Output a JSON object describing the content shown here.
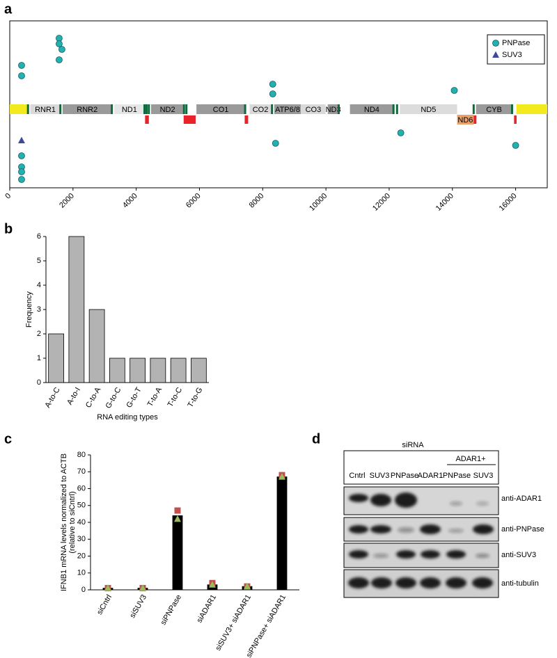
{
  "panel_labels": [
    "a",
    "b",
    "c",
    "d"
  ],
  "chart_data": [
    {
      "type": "scatter",
      "xlim": [
        0,
        17000
      ],
      "xticks": [
        0,
        2000,
        4000,
        6000,
        8000,
        10000,
        12000,
        14000,
        16000
      ],
      "ylim": [
        -11.3,
        12.7
      ],
      "legend": "upper right",
      "series": [
        {
          "name": "PNPase",
          "color": "#22b0b0",
          "marker": "circle",
          "x": [
            374,
            374,
            1562,
            1562,
            1650,
            1562,
            8319,
            8319,
            8407,
            12368,
            14060,
            16000,
            374,
            374,
            374,
            374
          ],
          "values": [
            6.3,
            4.8,
            10.2,
            9.4,
            8.6,
            7.1,
            3.6,
            2.2,
            -4.9,
            -3.4,
            2.7,
            -5.2,
            -6.7,
            -8.3,
            -9.0,
            -10.1
          ]
        },
        {
          "name": "SUV3",
          "color": "#3c4a9c",
          "marker": "triangle",
          "x": [
            374
          ],
          "values": [
            -4.5
          ]
        }
      ],
      "genome_map": {
        "noncoding_color": "#f2ea1c",
        "noncoding": [
          [
            0,
            577
          ],
          [
            16024,
            17000
          ]
        ],
        "genes": [
          {
            "name": "RNR1",
            "start": 648,
            "end": 1601,
            "color": "#d9d9d9"
          },
          {
            "name": "RNR2",
            "start": 1671,
            "end": 3229,
            "color": "#9a9a9a"
          },
          {
            "name": "ND1",
            "start": 3307,
            "end": 4262,
            "color": "#e6e6e6"
          },
          {
            "name": "ND2",
            "start": 4470,
            "end": 5511,
            "color": "#9a9a9a"
          },
          {
            "name": "CO1",
            "start": 5904,
            "end": 7445,
            "color": "#9a9a9a"
          },
          {
            "name": "CO2",
            "start": 7586,
            "end": 8269,
            "color": "#d9d9d9"
          },
          {
            "name": "ATP6/8",
            "start": 8366,
            "end": 9207,
            "color": "#9a9a9a"
          },
          {
            "name": "CO3",
            "start": 9207,
            "end": 9990,
            "color": "#d9d9d9"
          },
          {
            "name": "ND3",
            "start": 10059,
            "end": 10404,
            "color": "#9a9a9a"
          },
          {
            "name": "ND4",
            "start": 10760,
            "end": 12137,
            "color": "#9a9a9a"
          },
          {
            "name": "ND5",
            "start": 12337,
            "end": 14148,
            "color": "#dcdcdc"
          },
          {
            "name": "ND6",
            "start": 14149,
            "end": 14673,
            "color": "#e9a06a",
            "strand": "minus"
          },
          {
            "name": "CYB",
            "start": 14747,
            "end": 15887,
            "color": "#9a9a9a"
          }
        ],
        "trna_color": "#0b6b3a",
        "trna": [
          577,
          1601,
          3229,
          4262,
          4329,
          4400,
          5511,
          5587,
          7445,
          8295,
          10404,
          12137,
          12250,
          14673,
          15887
        ],
        "marks_color": "#e8242a",
        "marks": [
          [
            4280,
            4400
          ],
          [
            5500,
            5880
          ],
          [
            7430,
            7540
          ],
          [
            14673,
            14760
          ],
          [
            15950,
            16030
          ]
        ]
      }
    },
    {
      "type": "bar",
      "categories": [
        "A-to-C",
        "A-to-I",
        "C-to-A",
        "G-to-C",
        "G-to-T",
        "T-to-A",
        "T-to-C",
        "T-to-G"
      ],
      "values": [
        2,
        6,
        3,
        1,
        1,
        1,
        1,
        1
      ],
      "color": "#b3b3b3",
      "ylim": [
        0,
        6
      ],
      "yticks": [
        0,
        1,
        2,
        3,
        4,
        5,
        6
      ],
      "y_label": "Frequency",
      "x_label": "RNA editing types"
    },
    {
      "type": "bar",
      "categories": [
        "siCntrl",
        "siSUV3",
        "siPNPase",
        "siADAR1",
        "siSUV3+ siADAR1",
        "siPNPase+ siADAR1"
      ],
      "series": [
        {
          "color": "#000000",
          "values": [
            1,
            1,
            44,
            3,
            2,
            67
          ]
        },
        {
          "color": "#c0504d",
          "marker": "square",
          "values": [
            1,
            1,
            47,
            4,
            2,
            68
          ]
        },
        {
          "color": "#9bbb59",
          "marker": "triangle",
          "values": [
            1,
            1,
            42,
            3,
            2,
            67
          ]
        }
      ],
      "ylim": [
        0,
        80
      ],
      "yticks": [
        0,
        10,
        20,
        30,
        40,
        50,
        60,
        70,
        80
      ],
      "y_label": [
        "IFNB1 mRNA levels normalized to ACTB",
        "(relative to siCntrl)"
      ]
    }
  ],
  "blot": {
    "header": "siRNA",
    "group": "ADAR1+",
    "lanes": [
      "Cntrl",
      "SUV3",
      "PNPase",
      "ADAR1",
      "PNPase",
      "SUV3"
    ],
    "antibodies": [
      "anti-ADAR1",
      "anti-PNPase",
      "anti-SUV3",
      "anti-tubulin"
    ]
  }
}
